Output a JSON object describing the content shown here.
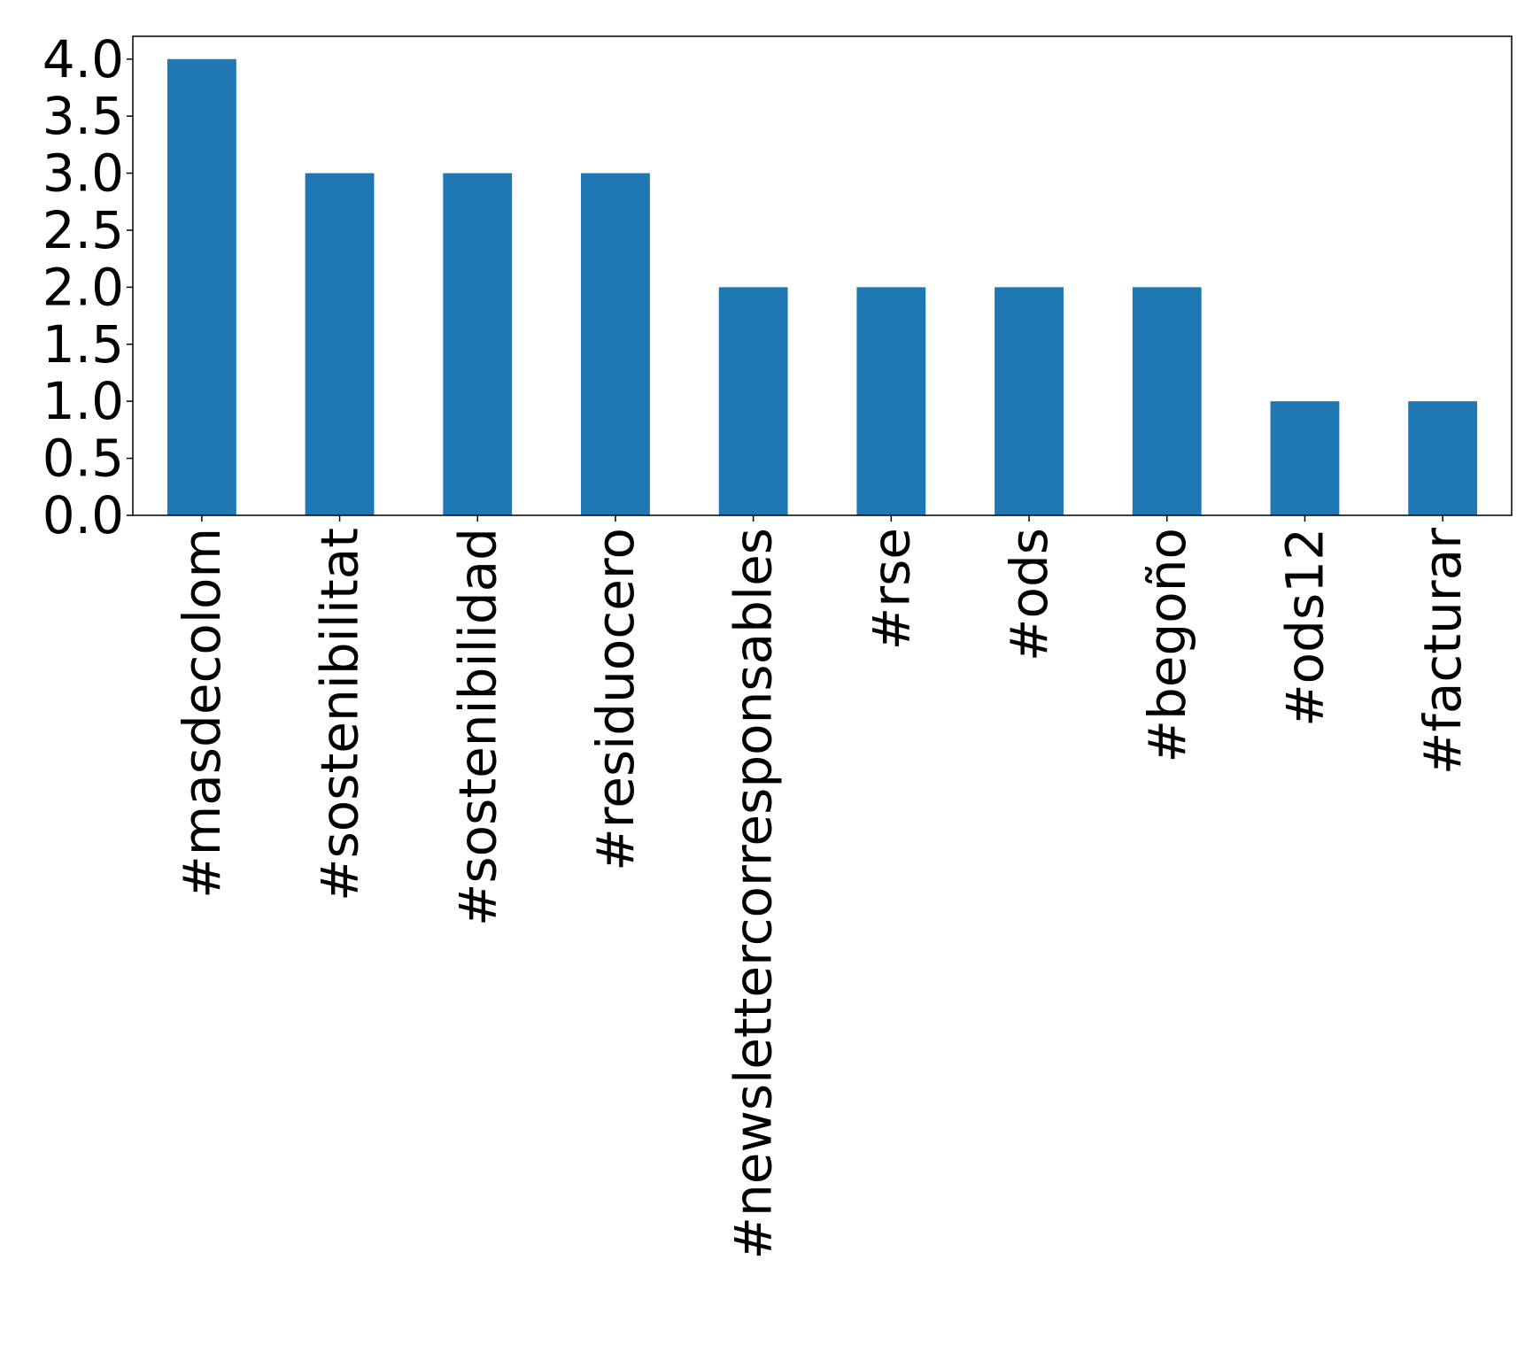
{
  "chart_data": {
    "type": "bar",
    "title": "",
    "xlabel": "",
    "ylabel": "",
    "categories": [
      "#masdecolom",
      "#sostenibilitat",
      "#sostenibilidad",
      "#residuocero",
      "#newslettercorresponsables",
      "#rse",
      "#ods",
      "#begoño",
      "#ods12",
      "#facturar"
    ],
    "values": [
      4,
      3,
      3,
      3,
      2,
      2,
      2,
      2,
      1,
      1
    ],
    "ylim": [
      0,
      4.2
    ],
    "yticks": [
      0.0,
      0.5,
      1.0,
      1.5,
      2.0,
      2.5,
      3.0,
      3.5,
      4.0
    ],
    "ytick_labels": [
      "0.0",
      "0.5",
      "1.0",
      "1.5",
      "2.0",
      "2.5",
      "3.0",
      "3.5",
      "4.0"
    ],
    "bar_color": "#1f77b4",
    "grid": false,
    "legend": "none"
  }
}
